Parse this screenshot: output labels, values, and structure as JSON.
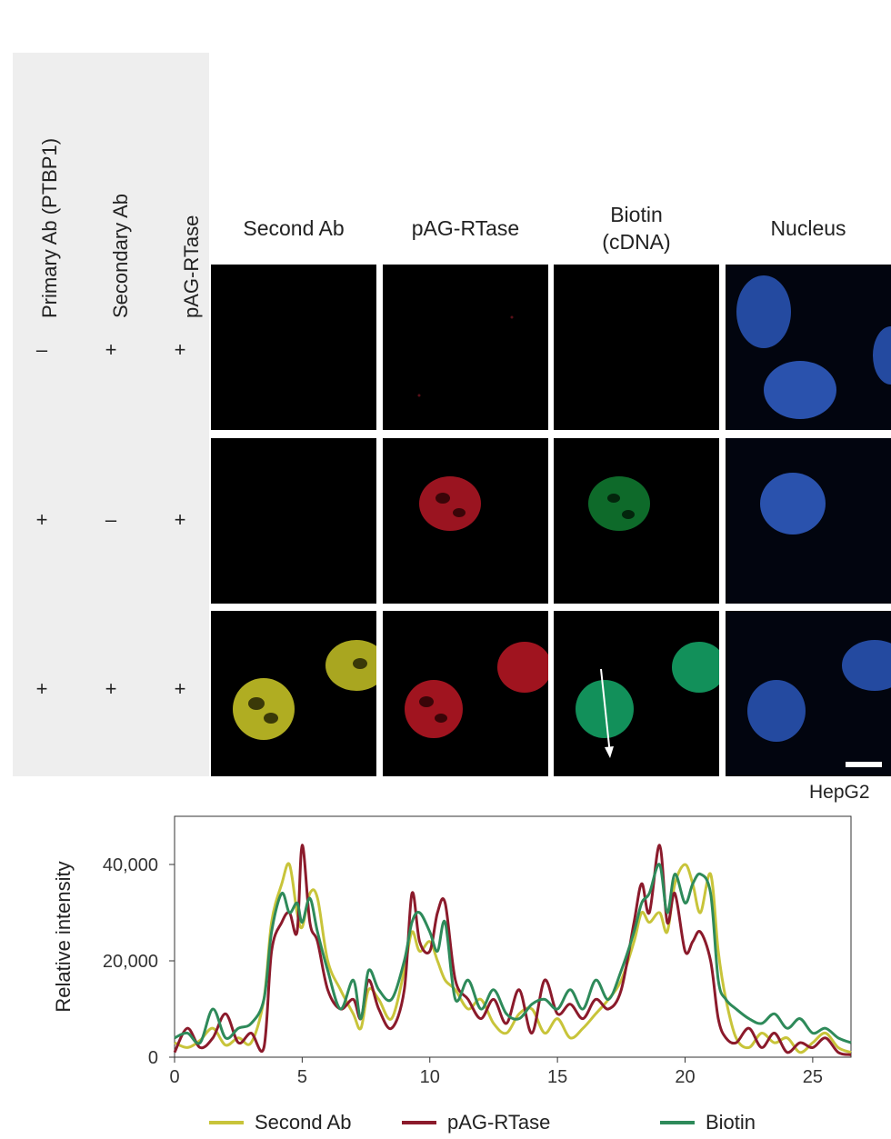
{
  "conditions": {
    "labels": [
      "Primary Ab (PTBP1)",
      "Secondary Ab",
      "pAG-RTase"
    ],
    "rows": [
      [
        "–",
        "+",
        "+"
      ],
      [
        "+",
        "–",
        "+"
      ],
      [
        "+",
        "+",
        "+"
      ]
    ]
  },
  "columns": [
    {
      "label_line1": "Second Ab",
      "label_line2": ""
    },
    {
      "label_line1": "pAG-RTase",
      "label_line2": ""
    },
    {
      "label_line1": "Biotin",
      "label_line2": "(cDNA)"
    },
    {
      "label_line1": "Nucleus",
      "label_line2": ""
    }
  ],
  "cell_line": "HepG2",
  "colors": {
    "second_ab": "#c8c43a",
    "pag_rtase": "#8b1a2b",
    "biotin": "#2e8a5a",
    "nucleus": "#2f5db8"
  },
  "chart_data": {
    "type": "line",
    "xlabel": "",
    "ylabel": "Relative intensity",
    "xlim": [
      0,
      26.5
    ],
    "ylim": [
      0,
      50000
    ],
    "xticks": [
      "0",
      "5",
      "10",
      "15",
      "20",
      "25"
    ],
    "yticks": [
      "0",
      "20,000",
      "40,000"
    ],
    "grid": false,
    "legend_position": "bottom",
    "series": [
      {
        "name": "Second Ab",
        "color": "#c8c43a",
        "x": [
          0,
          0.5,
          1,
          1.5,
          2,
          2.5,
          3,
          3.5,
          3.8,
          4.2,
          4.5,
          4.8,
          5,
          5.3,
          5.6,
          6,
          6.5,
          7,
          7.3,
          7.6,
          8,
          8.5,
          9,
          9.3,
          9.6,
          10,
          10.3,
          10.6,
          11,
          11.5,
          12,
          12.5,
          13,
          13.5,
          14,
          14.5,
          15,
          15.5,
          16,
          16.5,
          17,
          17.5,
          18,
          18.3,
          18.6,
          19,
          19.3,
          19.6,
          20,
          20.3,
          20.6,
          21,
          21.3,
          21.6,
          22,
          22.5,
          23,
          23.5,
          24,
          24.5,
          25,
          25.5,
          26,
          26.5
        ],
        "y": [
          3000,
          2000,
          3500,
          6000,
          2500,
          4000,
          3000,
          12000,
          28000,
          36000,
          40000,
          30000,
          27000,
          34000,
          33000,
          20000,
          14000,
          9000,
          6000,
          14000,
          12000,
          8000,
          18000,
          26000,
          22000,
          24000,
          20000,
          16000,
          14000,
          10000,
          12000,
          7000,
          5000,
          9000,
          10000,
          5000,
          8000,
          4000,
          6000,
          9000,
          12000,
          16000,
          24000,
          30000,
          28000,
          30000,
          26000,
          36000,
          40000,
          36000,
          30000,
          38000,
          22000,
          12000,
          4000,
          2000,
          5000,
          3000,
          4000,
          1000,
          3000,
          5000,
          2000,
          1000
        ]
      },
      {
        "name": "pAG-RTase",
        "color": "#8b1a2b",
        "x": [
          0,
          0.5,
          1,
          1.5,
          2,
          2.5,
          3,
          3.5,
          3.8,
          4.2,
          4.5,
          4.8,
          5,
          5.3,
          5.6,
          6,
          6.5,
          7,
          7.3,
          7.6,
          8,
          8.5,
          9,
          9.3,
          9.6,
          10,
          10.3,
          10.6,
          11,
          11.5,
          12,
          12.5,
          13,
          13.5,
          14,
          14.5,
          15,
          15.5,
          16,
          16.5,
          17,
          17.5,
          18,
          18.3,
          18.6,
          19,
          19.3,
          19.6,
          20,
          20.3,
          20.6,
          21,
          21.3,
          21.6,
          22,
          22.5,
          23,
          23.5,
          24,
          24.5,
          25,
          25.5,
          26,
          26.5
        ],
        "y": [
          1000,
          6000,
          2000,
          4000,
          9000,
          3000,
          5000,
          2000,
          22000,
          28000,
          30000,
          26000,
          44000,
          28000,
          24000,
          14000,
          10000,
          12000,
          8000,
          16000,
          10000,
          6000,
          14000,
          34000,
          24000,
          22000,
          30000,
          32000,
          16000,
          12000,
          8000,
          12000,
          7000,
          14000,
          5000,
          16000,
          9000,
          11000,
          8000,
          12000,
          10000,
          14000,
          28000,
          36000,
          30000,
          44000,
          28000,
          34000,
          22000,
          24000,
          26000,
          20000,
          8000,
          4000,
          3000,
          6000,
          2000,
          5000,
          1000,
          3000,
          2000,
          4000,
          1000,
          500
        ]
      },
      {
        "name": "Biotin",
        "color": "#2e8a5a",
        "x": [
          0,
          0.5,
          1,
          1.5,
          2,
          2.5,
          3,
          3.5,
          3.8,
          4.2,
          4.5,
          4.8,
          5,
          5.3,
          5.6,
          6,
          6.5,
          7,
          7.3,
          7.6,
          8,
          8.5,
          9,
          9.3,
          9.6,
          10,
          10.3,
          10.6,
          11,
          11.5,
          12,
          12.5,
          13,
          13.5,
          14,
          14.5,
          15,
          15.5,
          16,
          16.5,
          17,
          17.5,
          18,
          18.3,
          18.6,
          19,
          19.3,
          19.6,
          20,
          20.3,
          20.6,
          21,
          21.3,
          21.6,
          22,
          22.5,
          23,
          23.5,
          24,
          24.5,
          25,
          25.5,
          26,
          26.5
        ],
        "y": [
          4000,
          5000,
          3000,
          10000,
          4000,
          6000,
          7000,
          12000,
          26000,
          34000,
          30000,
          32000,
          28000,
          33000,
          26000,
          18000,
          10000,
          16000,
          8000,
          18000,
          14000,
          12000,
          20000,
          28000,
          30000,
          26000,
          22000,
          28000,
          12000,
          16000,
          10000,
          14000,
          9000,
          8000,
          11000,
          12000,
          10000,
          14000,
          10000,
          16000,
          12000,
          18000,
          26000,
          32000,
          34000,
          40000,
          30000,
          38000,
          32000,
          36000,
          38000,
          34000,
          16000,
          12000,
          10000,
          8000,
          7000,
          9000,
          6000,
          8000,
          5000,
          6000,
          4000,
          3000
        ]
      }
    ]
  }
}
